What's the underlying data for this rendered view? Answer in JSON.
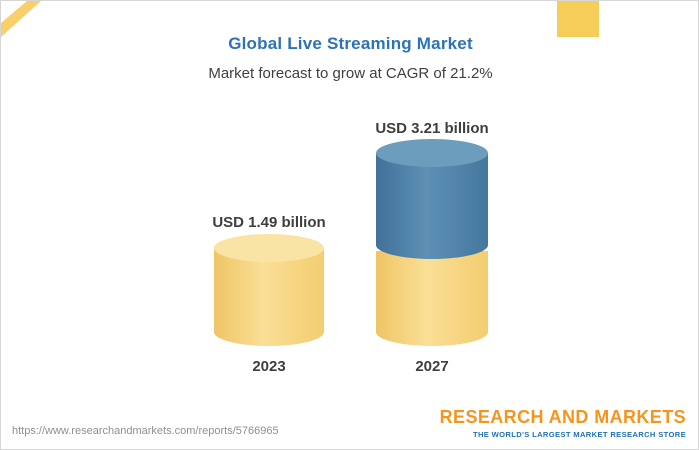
{
  "chart_data": {
    "type": "bar",
    "title": "Global Live Streaming Market",
    "subtitle": "Market forecast to grow at CAGR of 21.2%",
    "cagr_percent": 21.2,
    "unit": "USD billion",
    "categories": [
      "2023",
      "2027"
    ],
    "values": [
      1.49,
      3.21
    ],
    "data_labels": [
      "USD 1.49 billion",
      "USD 3.21 billion"
    ],
    "series_note": "2027 bar shows 2023 base value in yellow plus forecast growth in blue",
    "ylim": [
      0,
      3.5
    ],
    "grid": "off",
    "legend": "none",
    "colors": {
      "base_segment": "#f6d37b",
      "growth_segment": "#4e81a8",
      "title_text": "#2c73b4",
      "accent_yellow": "#f7cd59"
    }
  },
  "footer": {
    "url": "https://www.researchandmarkets.com/reports/5766965",
    "logo_text": "RESEARCH AND MARKETS",
    "logo_tagline": "THE WORLD'S LARGEST MARKET RESEARCH STORE"
  }
}
